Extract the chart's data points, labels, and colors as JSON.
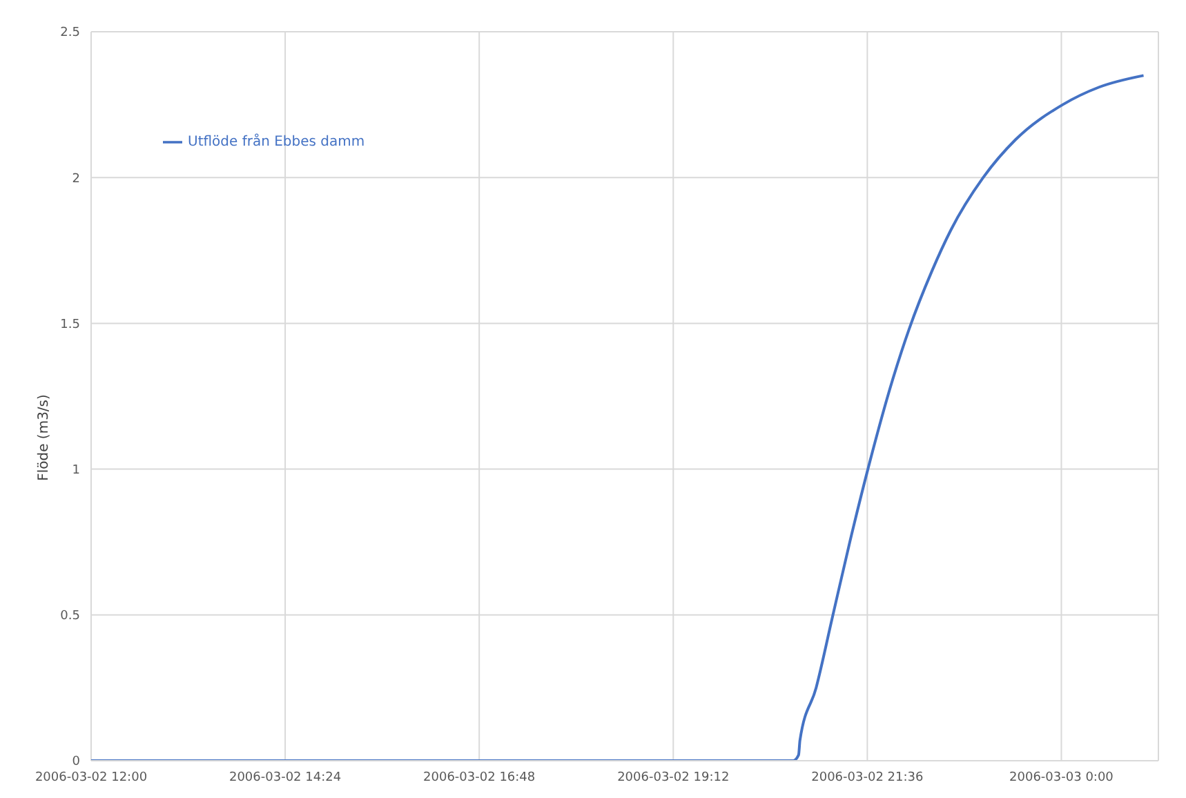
{
  "chart_data": {
    "type": "line",
    "ylabel": "Flöde (m3/s)",
    "x": [
      "2006-03-02T12:00",
      "2006-03-02T20:41",
      "2006-03-02T20:45",
      "2006-03-02T20:46",
      "2006-03-02T20:58",
      "2006-03-02T21:10",
      "2006-03-02T21:23",
      "2006-03-02T21:37",
      "2006-03-02T21:55",
      "2006-03-02T22:07",
      "2006-03-02T22:24",
      "2006-03-02T22:38",
      "2006-03-02T23:02",
      "2006-03-02T23:26",
      "2006-03-03T00:01",
      "2006-03-03T00:28",
      "2006-03-03T01:01"
    ],
    "series": [
      {
        "name": "Utflöde från Ebbes damm",
        "color": "#4472c4",
        "values": [
          0,
          0,
          0.02,
          0.07,
          0.25,
          0.49,
          0.75,
          1.01,
          1.31,
          1.48,
          1.68,
          1.82,
          2.0,
          2.13,
          2.25,
          2.31,
          2.35
        ]
      }
    ],
    "xlim": [
      "2006-03-02T12:00",
      "2006-03-03T01:12"
    ],
    "xticks": [
      {
        "value": "2006-03-02T12:00",
        "label": "2006-03-02 12:00"
      },
      {
        "value": "2006-03-02T14:24",
        "label": "2006-03-02 14:24"
      },
      {
        "value": "2006-03-02T16:48",
        "label": "2006-03-02 16:48"
      },
      {
        "value": "2006-03-02T19:12",
        "label": "2006-03-02 19:12"
      },
      {
        "value": "2006-03-02T21:36",
        "label": "2006-03-02 21:36"
      },
      {
        "value": "2006-03-03T00:00",
        "label": "2006-03-03 0:00"
      }
    ],
    "ylim": [
      0,
      2.5
    ],
    "yticks": [
      0,
      0.5,
      1,
      1.5,
      2,
      2.5
    ],
    "grid": true,
    "legend": "top left",
    "marker": "none",
    "line_style": "solid"
  }
}
